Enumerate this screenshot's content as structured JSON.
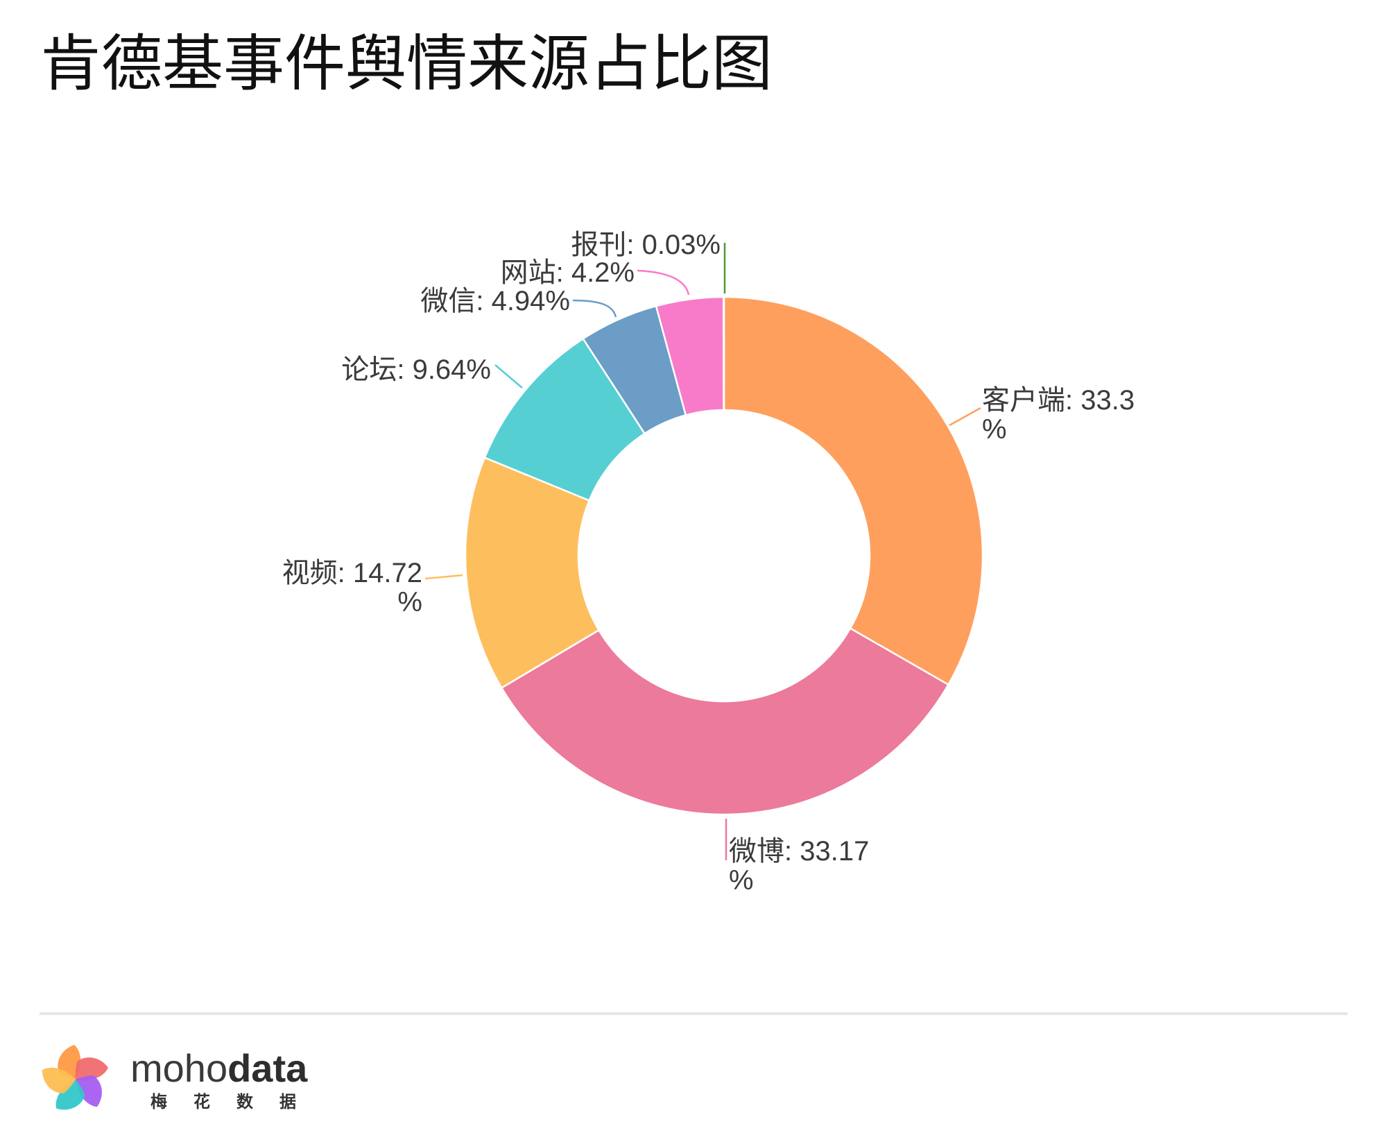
{
  "chart_data": {
    "type": "pie",
    "donut": true,
    "title": "肯德基事件舆情来源占比图",
    "slices": [
      {
        "value": 33.3,
        "color": "#FF9F5E",
        "label_lines": [
          "客户端: 33.3",
          "%"
        ]
      },
      {
        "value": 33.17,
        "color": "#EC7A9A",
        "label_lines": [
          "微博: 33.17",
          "%"
        ]
      },
      {
        "value": 14.72,
        "color": "#FDBF5E",
        "label_lines": [
          "视频: 14.72",
          "%"
        ]
      },
      {
        "value": 9.64,
        "color": "#56CFD3",
        "label_lines": [
          "论坛: 9.64%"
        ]
      },
      {
        "value": 4.94,
        "color": "#6B9DC6",
        "label_lines": [
          "微信: 4.94%"
        ]
      },
      {
        "value": 4.2,
        "color": "#F77BC8",
        "label_lines": [
          "网站: 4.2%"
        ]
      },
      {
        "value": 0.03,
        "color": "#4E9A36",
        "label_lines": [
          "报刊: 0.03%"
        ]
      }
    ]
  },
  "footer": {
    "brand_light": "moho",
    "brand_bold": "data",
    "brand_cn": "梅花数据"
  }
}
